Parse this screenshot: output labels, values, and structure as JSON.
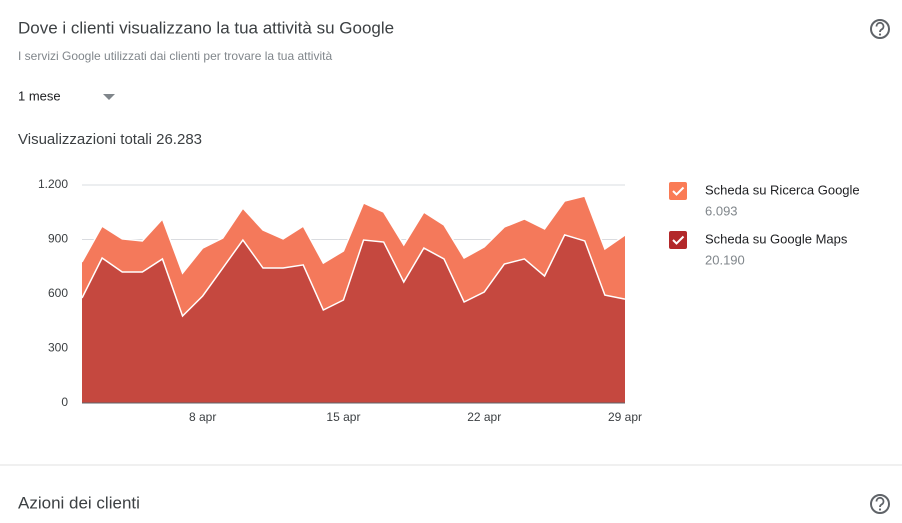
{
  "header": {
    "title": "Dove i clienti visualizzano la tua attività su Google",
    "subtitle": "I servizi Google utilizzati dai clienti per trovare la tua attività"
  },
  "period": "1 mese",
  "total_views": "Visualizzazioni totali 26.283",
  "chart_data": {
    "type": "stacked-area",
    "categories": [
      null,
      null,
      null,
      null,
      null,
      null,
      "8 apr",
      null,
      null,
      null,
      null,
      null,
      null,
      "15 apr",
      null,
      null,
      null,
      null,
      null,
      null,
      "22 apr",
      null,
      null,
      null,
      null,
      null,
      null,
      "29 apr"
    ],
    "series": [
      {
        "name": "Scheda su Ricerca Google",
        "total": "6.093",
        "color": "#f4795b",
        "checkbox_color": "#fa7b55",
        "values": [
          198,
          176,
          182,
          171,
          220,
          236,
          264,
          165,
          176,
          209,
          160,
          214,
          258,
          270,
          204,
          165,
          204,
          198,
          187,
          242,
          248,
          204,
          220,
          259,
          187,
          247,
          254,
          353
        ]
      },
      {
        "name": "Scheda su Google Maps",
        "total": "20.190",
        "color": "#c5483f",
        "checkbox_color": "#b3282a",
        "values": [
          578,
          798,
          721,
          721,
          793,
          479,
          589,
          743,
          897,
          743,
          743,
          760,
          512,
          567,
          897,
          886,
          666,
          853,
          793,
          556,
          611,
          765,
          793,
          699,
          925,
          892,
          594,
          572
        ]
      }
    ],
    "ylim": [
      0,
      1200
    ],
    "yticks": [
      0,
      300,
      600,
      900,
      {
        "value": 1200,
        "label": "1.200"
      }
    ],
    "grid": true
  },
  "next_section": {
    "title": "Azioni dei clienti"
  }
}
